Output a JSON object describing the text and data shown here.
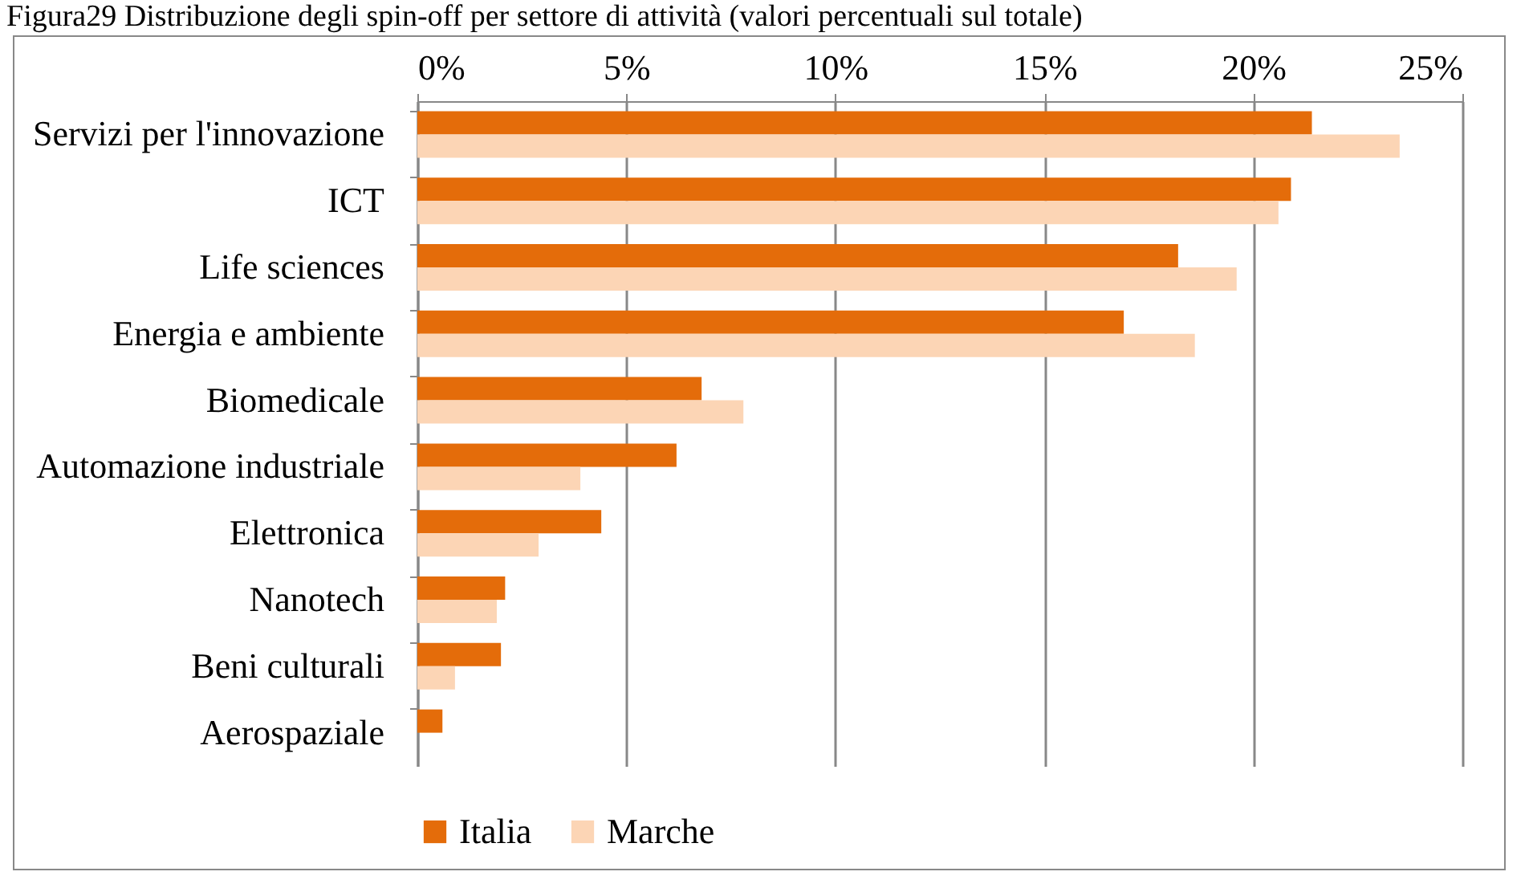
{
  "chart_data": {
    "type": "bar",
    "orientation": "horizontal",
    "title": "Figura29 Distribuzione degli spin-off per settore di attività (valori percentuali sul totale)",
    "categories": [
      "Servizi per l'innovazione",
      "ICT",
      "Life sciences",
      "Energia e ambiente",
      "Biomedicale",
      "Automazione industriale",
      "Elettronica",
      "Nanotech",
      "Beni culturali",
      "Aerospaziale"
    ],
    "series": [
      {
        "name": "Italia",
        "color": "#e46c0a",
        "values": [
          21.4,
          20.9,
          18.2,
          16.9,
          6.8,
          6.2,
          4.4,
          2.1,
          2.0,
          0.6
        ]
      },
      {
        "name": "Marche",
        "color": "#fcd5b5",
        "values": [
          23.5,
          20.6,
          19.6,
          18.6,
          7.8,
          3.9,
          2.9,
          1.9,
          0.9,
          0
        ]
      }
    ],
    "xlim": [
      0,
      25
    ],
    "xticks": [
      {
        "value": 0,
        "label": "0%"
      },
      {
        "value": 5,
        "label": "5%"
      },
      {
        "value": 10,
        "label": "10%"
      },
      {
        "value": 15,
        "label": "15%"
      },
      {
        "value": 20,
        "label": "20%"
      },
      {
        "value": 25,
        "label": "25%"
      }
    ],
    "grid": "x",
    "legend": "bottom"
  }
}
